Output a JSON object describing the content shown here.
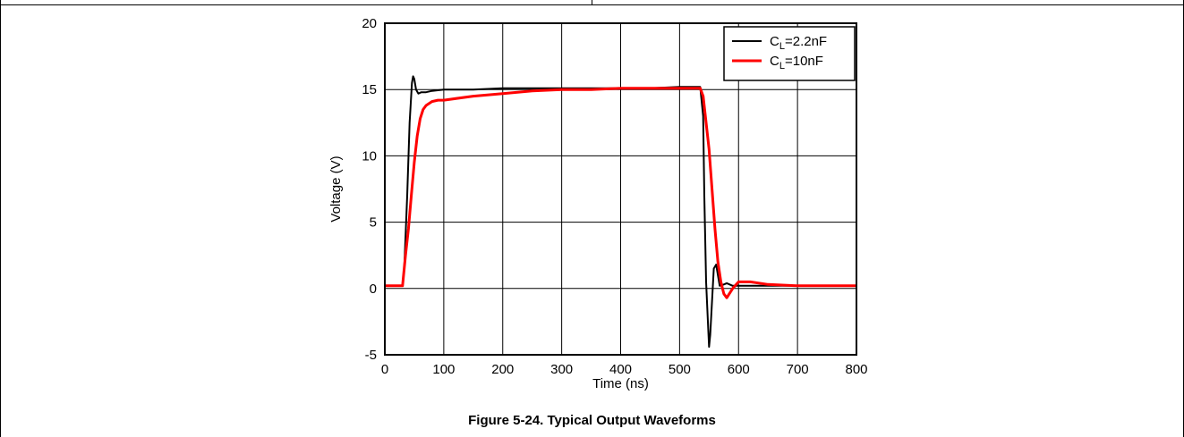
{
  "caption": "Figure 5-24. Typical Output Waveforms",
  "chart_data": {
    "type": "line",
    "title": "",
    "xlabel": "Time (ns)",
    "ylabel": "Voltage (V)",
    "xlim": [
      0,
      800
    ],
    "ylim": [
      -5,
      20
    ],
    "xticks": [
      0,
      100,
      200,
      300,
      400,
      500,
      600,
      700,
      800
    ],
    "yticks": [
      -5,
      0,
      5,
      10,
      15,
      20
    ],
    "grid": true,
    "legend_position": "top-right",
    "series": [
      {
        "name": "CL=2.2nF",
        "legend_main": "C",
        "legend_sub": "L",
        "legend_rest": "=2.2nF",
        "color": "#000000",
        "x": [
          0,
          30,
          33,
          38,
          42,
          46,
          48,
          50,
          53,
          57,
          62,
          70,
          80,
          100,
          150,
          200,
          250,
          300,
          350,
          400,
          450,
          500,
          535,
          540,
          542,
          545,
          548,
          550,
          552,
          555,
          558,
          562,
          568,
          575,
          580,
          590,
          600,
          650,
          700,
          750,
          800
        ],
        "y": [
          0.2,
          0.2,
          1.5,
          7,
          12.5,
          15.5,
          16.0,
          15.8,
          15.0,
          14.7,
          14.8,
          14.8,
          14.9,
          15.0,
          15.0,
          15.1,
          15.1,
          15.1,
          15.1,
          15.1,
          15.1,
          15.2,
          15.2,
          13.0,
          7.0,
          0.5,
          -2.5,
          -4.4,
          -3.5,
          -1.0,
          1.5,
          1.8,
          0.2,
          0.3,
          0.4,
          0.2,
          0.2,
          0.2,
          0.2,
          0.2,
          0.2
        ]
      },
      {
        "name": "CL=10nF",
        "legend_main": "C",
        "legend_sub": "L",
        "legend_rest": "=10nF",
        "color": "#ff0000",
        "x": [
          0,
          30,
          35,
          40,
          45,
          50,
          55,
          60,
          65,
          70,
          80,
          90,
          100,
          150,
          200,
          250,
          300,
          350,
          400,
          450,
          500,
          535,
          540,
          545,
          550,
          555,
          560,
          565,
          570,
          575,
          580,
          590,
          600,
          620,
          650,
          700,
          750,
          800
        ],
        "y": [
          0.2,
          0.2,
          2.5,
          4.5,
          7.0,
          9.5,
          11.5,
          12.8,
          13.5,
          13.8,
          14.1,
          14.2,
          14.2,
          14.5,
          14.7,
          14.9,
          15.0,
          15.0,
          15.1,
          15.1,
          15.1,
          15.1,
          14.5,
          12.5,
          10.5,
          7.5,
          4.5,
          2.0,
          0.5,
          -0.4,
          -0.7,
          0.0,
          0.5,
          0.5,
          0.3,
          0.2,
          0.2,
          0.2
        ]
      }
    ]
  }
}
